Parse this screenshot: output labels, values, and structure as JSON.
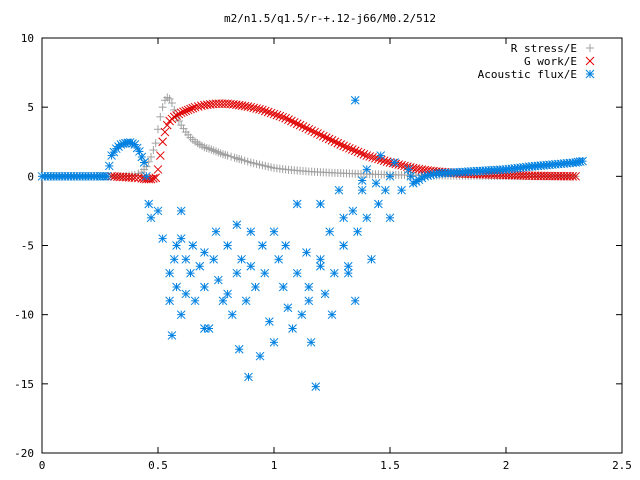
{
  "chart_data": {
    "type": "scatter",
    "title": "m2/n1.5/q1.5/r-+.12-j66/M0.2/512",
    "xlabel": "",
    "ylabel": "",
    "xlim": [
      0,
      2.5
    ],
    "ylim": [
      -20,
      10
    ],
    "xticks": [
      "0",
      "0.5",
      "1",
      "1.5",
      "2",
      "2.5"
    ],
    "yticks": [
      "10",
      "5",
      "0",
      "-5",
      "-10",
      "-15",
      "-20"
    ],
    "grid": false,
    "legend_position": "top-right",
    "series": [
      {
        "name": "R stress/E",
        "marker": "plus",
        "color": "#a0a0a0",
        "x": [
          0.0,
          0.1,
          0.2,
          0.3,
          0.35,
          0.4,
          0.43,
          0.45,
          0.47,
          0.49,
          0.5,
          0.51,
          0.52,
          0.53,
          0.54,
          0.55,
          0.56,
          0.57,
          0.58,
          0.6,
          0.62,
          0.64,
          0.66,
          0.68,
          0.7,
          0.72,
          0.75,
          0.78,
          0.8,
          0.83,
          0.86,
          0.9,
          0.95,
          1.0,
          1.05,
          1.1,
          1.15,
          1.2,
          1.25,
          1.3,
          1.35,
          1.4,
          1.45,
          1.5,
          1.55,
          1.6,
          1.7,
          1.8,
          1.9,
          2.0,
          2.1,
          2.2,
          2.3
        ],
        "y": [
          0,
          0,
          0,
          0,
          0,
          0.1,
          0.3,
          0.7,
          1.4,
          2.4,
          3.4,
          4.3,
          5.0,
          5.5,
          5.7,
          5.6,
          5.3,
          4.8,
          4.3,
          3.7,
          3.2,
          2.8,
          2.5,
          2.3,
          2.1,
          2.0,
          1.8,
          1.6,
          1.5,
          1.35,
          1.2,
          1.0,
          0.8,
          0.6,
          0.5,
          0.42,
          0.35,
          0.3,
          0.26,
          0.22,
          0.19,
          0.16,
          0.14,
          0.12,
          0.1,
          0.08,
          0.06,
          0.04,
          0.03,
          0.02,
          0.01,
          0,
          0
        ]
      },
      {
        "name": "G work/E",
        "marker": "x",
        "color": "#e00000",
        "x": [
          0.3,
          0.35,
          0.4,
          0.43,
          0.45,
          0.47,
          0.49,
          0.5,
          0.51,
          0.52,
          0.53,
          0.54,
          0.55,
          0.57,
          0.6,
          0.63,
          0.66,
          0.7,
          0.75,
          0.8,
          0.85,
          0.9,
          0.95,
          1.0,
          1.05,
          1.1,
          1.15,
          1.2,
          1.25,
          1.3,
          1.35,
          1.4,
          1.45,
          1.5,
          1.55,
          1.6,
          1.65,
          1.7,
          1.8,
          1.9,
          2.0,
          2.1,
          2.2,
          2.3
        ],
        "y": [
          0,
          -0.05,
          -0.1,
          -0.15,
          -0.2,
          -0.2,
          -0.1,
          0.5,
          1.5,
          2.5,
          3.2,
          3.7,
          4.0,
          4.3,
          4.6,
          4.8,
          5.0,
          5.15,
          5.25,
          5.25,
          5.15,
          5.0,
          4.8,
          4.5,
          4.2,
          3.8,
          3.4,
          3.0,
          2.6,
          2.2,
          1.85,
          1.5,
          1.25,
          1.0,
          0.8,
          0.6,
          0.45,
          0.35,
          0.2,
          0.15,
          0.1,
          0.05,
          0.02,
          0.0
        ]
      },
      {
        "name": "Acoustic flux/E",
        "marker": "star",
        "color": "#0080e0",
        "x": [
          0.0,
          0.05,
          0.1,
          0.15,
          0.2,
          0.25,
          0.28,
          0.3,
          0.32,
          0.34,
          0.36,
          0.38,
          0.4,
          0.42,
          0.44,
          0.45,
          0.46,
          0.47,
          0.5,
          0.52,
          0.55,
          0.55,
          0.56,
          0.57,
          0.58,
          0.58,
          0.6,
          0.6,
          0.62,
          0.62,
          0.64,
          0.65,
          0.66,
          0.68,
          0.7,
          0.7,
          0.72,
          0.74,
          0.75,
          0.76,
          0.78,
          0.8,
          0.8,
          0.82,
          0.84,
          0.85,
          0.86,
          0.88,
          0.89,
          0.9,
          0.9,
          0.92,
          0.94,
          0.95,
          0.96,
          0.98,
          1.0,
          1.0,
          1.02,
          1.04,
          1.05,
          1.06,
          1.08,
          1.1,
          1.1,
          1.12,
          1.14,
          1.15,
          1.16,
          1.18,
          1.2,
          1.2,
          1.22,
          1.24,
          1.25,
          1.26,
          1.28,
          1.3,
          1.3,
          1.32,
          1.34,
          1.35,
          1.36,
          1.38,
          1.4,
          1.4,
          1.42,
          1.44,
          1.45,
          1.46,
          1.48,
          1.5,
          1.5,
          1.52,
          1.55,
          1.58,
          1.6,
          1.65,
          1.7,
          1.8,
          1.9,
          2.0,
          2.1,
          2.2,
          2.3,
          2.33
        ],
        "y": [
          0,
          0,
          0,
          0,
          0,
          0,
          0,
          1.5,
          2.0,
          2.3,
          2.4,
          2.45,
          2.3,
          1.8,
          1.0,
          0,
          -2,
          -3,
          -2.5,
          -4.5,
          -7,
          -9,
          -11.5,
          -6,
          -8,
          -5,
          -4.5,
          -10,
          -6,
          -8.5,
          -7,
          -5,
          -9,
          -6.5,
          -5.5,
          -8,
          -11,
          -6,
          -4,
          -7.5,
          -9,
          -5,
          -8.5,
          -10,
          -7,
          -12.5,
          -6,
          -9,
          -14.5,
          -4,
          -6.5,
          -8,
          -13,
          -5,
          -7,
          -10.5,
          -4,
          -12,
          -6,
          -8,
          -5,
          -9.5,
          -11,
          -2,
          -7,
          -10,
          -5.5,
          -8,
          -12,
          -15.2,
          -2,
          -6.5,
          -8.5,
          -4,
          -10,
          -7,
          -1,
          -5,
          -3,
          -6.5,
          -2.5,
          -9,
          -4,
          -1,
          0.5,
          -3,
          -6,
          -0.5,
          -2,
          1.5,
          -1,
          -3,
          0,
          1,
          -1,
          0.5,
          -0.5,
          0,
          0.2,
          0.3,
          0.4,
          0.5,
          0.7,
          0.85,
          1.0,
          1.1
        ]
      }
    ],
    "extra_points": {
      "acoustic_outliers": [
        [
          1.32,
          -7
        ],
        [
          1.35,
          5.5
        ],
        [
          0.6,
          -2.5
        ],
        [
          1.15,
          -9
        ],
        [
          0.7,
          -11
        ],
        [
          1.2,
          -6
        ],
        [
          0.84,
          -3.5
        ],
        [
          1.38,
          -0.3
        ]
      ]
    }
  }
}
